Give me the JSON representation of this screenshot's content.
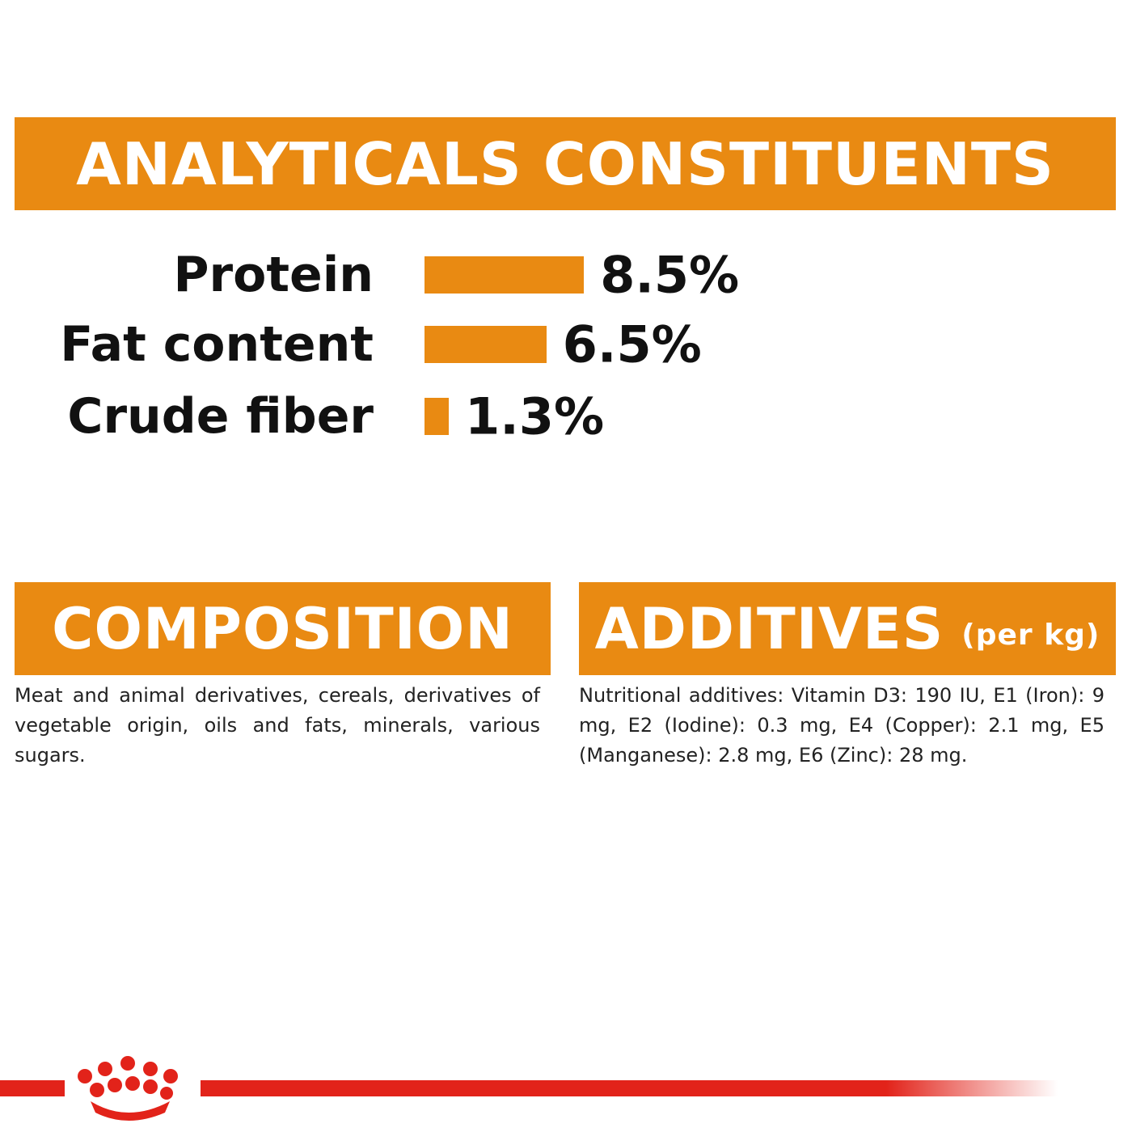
{
  "chart_data": {
    "type": "bar",
    "title": "ANALYTICALS CONSTITUENTS",
    "categories": [
      "Protein",
      "Fat content",
      "Crude fiber"
    ],
    "values": [
      8.5,
      6.5,
      1.3
    ],
    "value_labels": [
      "8.5%",
      "6.5%",
      "1.3%"
    ],
    "color": "#e98a12"
  },
  "composition": {
    "title": "COMPOSITION",
    "text": "Meat and animal derivatives, cereals, derivatives of vegetable origin, oils and fats, minerals, various sugars."
  },
  "additives": {
    "title": "ADDITIVES",
    "title_note": "(per kg)",
    "text": "Nutritional additives: Vitamin D3: 190 IU, E1 (Iron): 9 mg, E2 (Iodine): 0.3 mg, E4 (Copper): 2.1 mg, E5 (Manganese): 2.8 mg, E6 (Zinc): 28 mg."
  }
}
